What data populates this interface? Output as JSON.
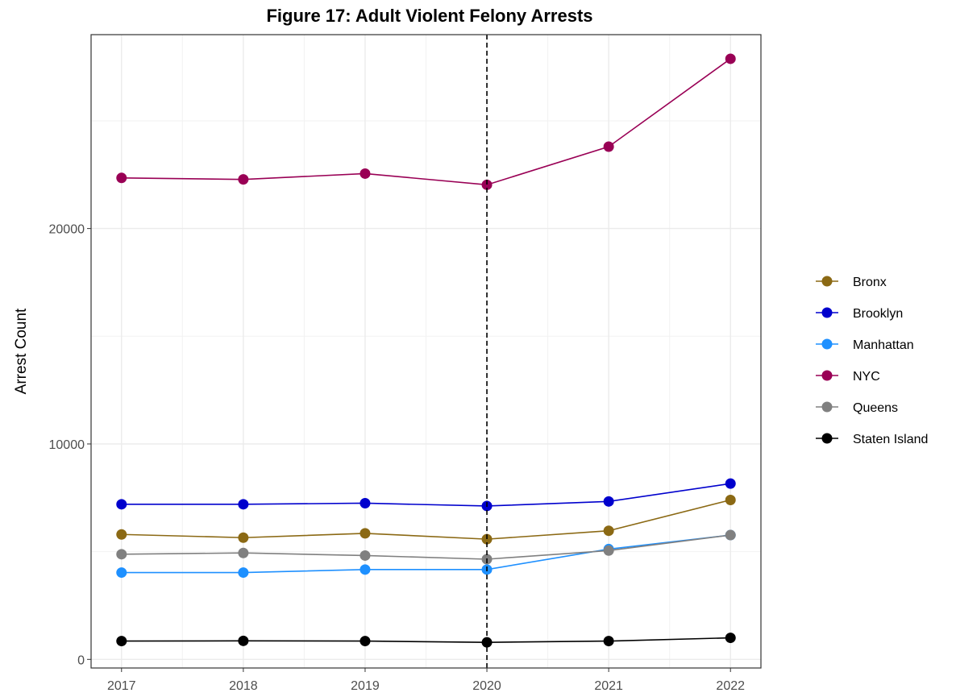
{
  "chart_data": {
    "type": "line",
    "title": "Figure 17: Adult Violent Felony Arrests",
    "xlabel": "",
    "ylabel": "Arrest Count",
    "x": [
      2017,
      2018,
      2019,
      2020,
      2021,
      2022
    ],
    "x_tick_labels": [
      "2017",
      "2018",
      "2019",
      "2020",
      "2021",
      "2022"
    ],
    "y_ticks": [
      0,
      10000,
      20000
    ],
    "y_tick_labels": [
      "0",
      "10000",
      "20000"
    ],
    "ylim": [
      -400,
      29000
    ],
    "grid": true,
    "reference_line": {
      "x": 2020,
      "style": "dashed"
    },
    "legend_position": "right",
    "series": [
      {
        "name": "Bronx",
        "color": "#8B6914",
        "values": [
          5800,
          5650,
          5850,
          5580,
          5970,
          7400
        ]
      },
      {
        "name": "Brooklyn",
        "color": "#0000CD",
        "values": [
          7200,
          7200,
          7250,
          7120,
          7330,
          8160
        ]
      },
      {
        "name": "Manhattan",
        "color": "#1E90FF",
        "values": [
          4030,
          4030,
          4170,
          4170,
          5120,
          5770
        ]
      },
      {
        "name": "NYC",
        "color": "#990055",
        "values": [
          22350,
          22280,
          22550,
          22030,
          23800,
          27880
        ]
      },
      {
        "name": "Queens",
        "color": "#808080",
        "values": [
          4880,
          4940,
          4820,
          4650,
          5050,
          5770
        ]
      },
      {
        "name": "Staten Island",
        "color": "#000000",
        "values": [
          850,
          860,
          850,
          790,
          850,
          1000
        ]
      }
    ]
  }
}
